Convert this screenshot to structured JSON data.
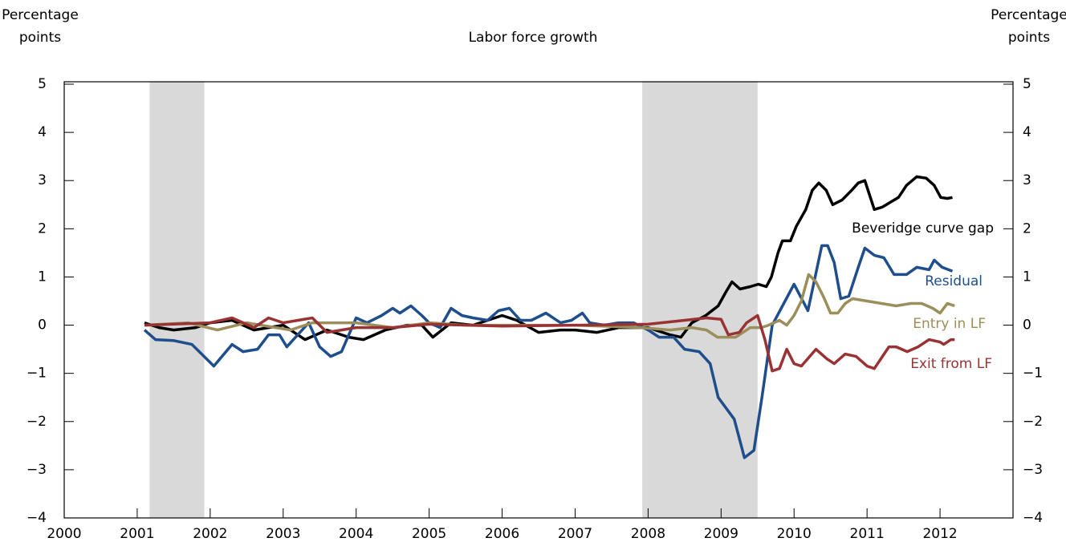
{
  "chart_data": {
    "type": "line",
    "title": "Labor force growth",
    "ylabel": [
      "Percentage",
      "points"
    ],
    "y2label": [
      "Percentage",
      "points"
    ],
    "xlim": [
      2000,
      2013
    ],
    "xticks": [
      2000,
      2001,
      2002,
      2003,
      2004,
      2005,
      2006,
      2007,
      2008,
      2009,
      2010,
      2011,
      2012
    ],
    "ylim": [
      -4,
      5
    ],
    "yticks": [
      {
        "value": -4,
        "label": "−4"
      },
      {
        "value": -3,
        "label": "−3"
      },
      {
        "value": -2,
        "label": "−2"
      },
      {
        "value": -1,
        "label": "−1"
      },
      0,
      1,
      2,
      3,
      4,
      5
    ],
    "y2lim": [
      -4,
      5
    ],
    "y2ticks": [
      {
        "value": -4,
        "label": "−4"
      },
      {
        "value": -3,
        "label": "−3"
      },
      {
        "value": -2,
        "label": "−2"
      },
      {
        "value": -1,
        "label": "−1"
      },
      0,
      1,
      2,
      3,
      4,
      5
    ],
    "recessions": [
      [
        2001.17,
        2001.92
      ],
      [
        2007.92,
        2009.5
      ]
    ],
    "shade_color": "#d9d9d9",
    "series": [
      {
        "name": "Beveridge curve gap",
        "color": "#000000",
        "x": [
          2001.1,
          2001.3,
          2001.5,
          2001.8,
          2002.0,
          2002.3,
          2002.6,
          2003.0,
          2003.3,
          2003.6,
          2003.9,
          2004.1,
          2004.4,
          2004.7,
          2004.9,
          2005.05,
          2005.3,
          2005.6,
          2006.0,
          2006.2,
          2006.5,
          2006.8,
          2007.0,
          2007.3,
          2007.6,
          2008.0,
          2008.3,
          2008.45,
          2008.6,
          2008.79,
          2008.96,
          2009.07,
          2009.15,
          2009.26,
          2009.4,
          2009.51,
          2009.62,
          2009.69,
          2009.78,
          2009.84,
          2009.95,
          2010.03,
          2010.16,
          2010.25,
          2010.34,
          2010.44,
          2010.53,
          2010.66,
          2010.79,
          2010.88,
          2010.97,
          2011.1,
          2011.21,
          2011.32,
          2011.43,
          2011.54,
          2011.68,
          2011.81,
          2011.92,
          2012.01,
          2012.1,
          2012.17
        ],
        "values": [
          0.05,
          -0.05,
          -0.1,
          -0.05,
          0.05,
          0.1,
          -0.1,
          0,
          -0.3,
          -0.1,
          -0.25,
          -0.3,
          -0.1,
          0,
          0,
          -0.25,
          0.05,
          0,
          0.2,
          0.1,
          -0.15,
          -0.1,
          -0.1,
          -0.15,
          -0.05,
          -0.05,
          -0.2,
          -0.25,
          0.05,
          0.2,
          0.4,
          0.7,
          0.9,
          0.75,
          0.8,
          0.85,
          0.8,
          1.0,
          1.5,
          1.75,
          1.75,
          2.05,
          2.4,
          2.8,
          2.95,
          2.8,
          2.5,
          2.6,
          2.8,
          2.95,
          3.0,
          2.4,
          2.45,
          2.55,
          2.65,
          2.9,
          3.08,
          3.05,
          2.9,
          2.65,
          2.63,
          2.65
        ]
      },
      {
        "name": "Residual",
        "color": "#1f4e8c",
        "x": [
          2001.1,
          2001.25,
          2001.5,
          2001.75,
          2001.95,
          2002.05,
          2002.3,
          2002.45,
          2002.65,
          2002.8,
          2002.95,
          2003.05,
          2003.35,
          2003.5,
          2003.65,
          2003.8,
          2004.0,
          2004.15,
          2004.35,
          2004.5,
          2004.6,
          2004.75,
          2004.9,
          2005.0,
          2005.15,
          2005.3,
          2005.45,
          2005.6,
          2005.8,
          2005.95,
          2006.1,
          2006.25,
          2006.4,
          2006.6,
          2006.8,
          2006.95,
          2007.1,
          2007.2,
          2007.4,
          2007.6,
          2007.8,
          2008.0,
          2008.15,
          2008.35,
          2008.5,
          2008.7,
          2008.85,
          2008.96,
          2009.18,
          2009.32,
          2009.45,
          2009.56,
          2009.7,
          2010.0,
          2010.19,
          2010.38,
          2010.46,
          2010.55,
          2010.64,
          2010.75,
          2010.88,
          2010.97,
          2011.1,
          2011.23,
          2011.37,
          2011.54,
          2011.68,
          2011.85,
          2011.92,
          2012.03,
          2012.17
        ],
        "values": [
          -0.1,
          -0.3,
          -0.32,
          -0.4,
          -0.7,
          -0.85,
          -0.4,
          -0.55,
          -0.5,
          -0.2,
          -0.2,
          -0.45,
          0.05,
          -0.45,
          -0.65,
          -0.55,
          0.15,
          0.05,
          0.2,
          0.35,
          0.25,
          0.4,
          0.2,
          0.05,
          -0.05,
          0.35,
          0.2,
          0.15,
          0.1,
          0.3,
          0.35,
          0.1,
          0.1,
          0.25,
          0.05,
          0.1,
          0.25,
          0.05,
          0,
          0.05,
          0.05,
          -0.1,
          -0.25,
          -0.25,
          -0.5,
          -0.55,
          -0.8,
          -1.5,
          -1.95,
          -2.75,
          -2.6,
          -1.5,
          0,
          0.85,
          0.3,
          1.65,
          1.65,
          1.3,
          0.55,
          0.6,
          1.2,
          1.6,
          1.45,
          1.4,
          1.05,
          1.05,
          1.2,
          1.15,
          1.35,
          1.2,
          1.12
        ]
      },
      {
        "name": "Entry  in LF",
        "color": "#9c8e5a",
        "x": [
          2001.1,
          2001.7,
          2002.1,
          2002.5,
          2003.1,
          2003.4,
          2004.0,
          2004.5,
          2005.0,
          2005.5,
          2006.0,
          2007.0,
          2007.9,
          2008.3,
          2008.6,
          2008.8,
          2008.95,
          2009.2,
          2009.4,
          2009.55,
          2009.65,
          2009.8,
          2009.9,
          2010.0,
          2010.1,
          2010.2,
          2010.3,
          2010.4,
          2010.5,
          2010.6,
          2010.7,
          2010.8,
          2011.0,
          2011.2,
          2011.4,
          2011.6,
          2011.75,
          2011.9,
          2012.0,
          2012.1,
          2012.2
        ],
        "values": [
          0,
          0.05,
          -0.1,
          0.05,
          -0.1,
          0.05,
          0.05,
          -0.05,
          0.05,
          0,
          0,
          0,
          -0.05,
          -0.1,
          -0.05,
          -0.1,
          -0.25,
          -0.25,
          -0.05,
          -0.05,
          0,
          0.1,
          0,
          0.2,
          0.5,
          1.05,
          0.9,
          0.6,
          0.25,
          0.25,
          0.45,
          0.55,
          0.5,
          0.45,
          0.4,
          0.45,
          0.45,
          0.35,
          0.25,
          0.45,
          0.4
        ]
      },
      {
        "name": "Exit from LF",
        "color": "#993333",
        "x": [
          2001.1,
          2002.0,
          2002.3,
          2002.6,
          2002.8,
          2003.0,
          2003.4,
          2003.6,
          2004.0,
          2004.5,
          2005.0,
          2006.0,
          2007.0,
          2008.0,
          2008.5,
          2008.8,
          2009.0,
          2009.1,
          2009.25,
          2009.35,
          2009.5,
          2009.6,
          2009.7,
          2009.8,
          2009.9,
          2010.0,
          2010.1,
          2010.3,
          2010.45,
          2010.55,
          2010.7,
          2010.85,
          2011.0,
          2011.1,
          2011.3,
          2011.4,
          2011.55,
          2011.7,
          2011.85,
          2012.0,
          2012.05,
          2012.15,
          2012.2
        ],
        "values": [
          0,
          0.05,
          0.15,
          -0.05,
          0.15,
          0.05,
          0.15,
          -0.15,
          -0.05,
          -0.05,
          0.02,
          -0.02,
          0,
          0.02,
          0.1,
          0.15,
          0.12,
          -0.2,
          -0.15,
          0.05,
          0.2,
          -0.3,
          -0.95,
          -0.9,
          -0.5,
          -0.8,
          -0.85,
          -0.5,
          -0.7,
          -0.8,
          -0.6,
          -0.65,
          -0.85,
          -0.9,
          -0.45,
          -0.45,
          -0.55,
          -0.45,
          -0.3,
          -0.35,
          -0.4,
          -0.3,
          -0.3
        ]
      }
    ]
  }
}
